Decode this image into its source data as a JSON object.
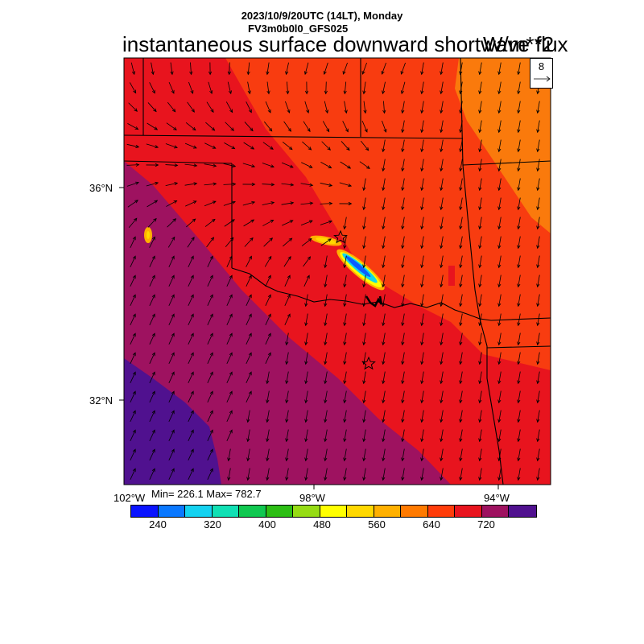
{
  "header": {
    "datetime": "2023/10/9/20UTC (14LT), Monday",
    "model": "FV3m0b0l0_GFS025",
    "variable": "instantaneous surface downward shortwave flux",
    "units": "W/m**2"
  },
  "map": {
    "lat_labels": [
      "36°N",
      "32°N"
    ],
    "lon_labels": [
      "102°W",
      "98°W",
      "94°W"
    ],
    "region": "Oklahoma / Texas / Kansas",
    "field_colors": {
      "low_band": "#50118f",
      "mid_band": "#9e1260",
      "main": "#e8141e",
      "northeast": "#f83c10",
      "far_northeast": "#fa7a0c",
      "cloud_blue": "#0a5cff",
      "cloud_cyan": "#12d6e8",
      "cloud_yellow": "#ffd800"
    },
    "reference_vector": {
      "value": "8"
    },
    "stations": [
      "station-star-north",
      "station-star-south"
    ]
  },
  "stats": {
    "text": "Min= 226.1 Max= 782.7"
  },
  "colorbar": {
    "colors": [
      "#0a14ff",
      "#0a78ff",
      "#14d2f0",
      "#10e0b4",
      "#10c850",
      "#2cbe14",
      "#96dc14",
      "#ffff00",
      "#ffd800",
      "#ffb000",
      "#ff7a00",
      "#ff3c0a",
      "#e8141e",
      "#9e1260",
      "#50118f"
    ],
    "labels": [
      "240",
      "320",
      "400",
      "480",
      "560",
      "640",
      "720"
    ]
  }
}
